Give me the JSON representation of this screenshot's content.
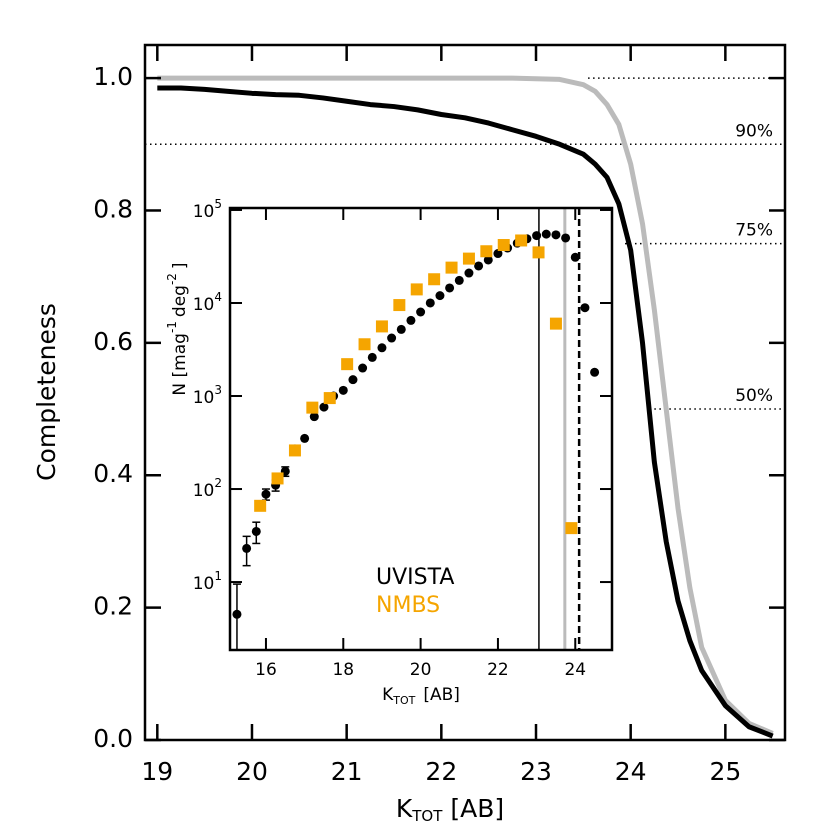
{
  "chart_data": [
    {
      "type": "line",
      "x_label": {
        "base": "K",
        "sub": "TOT",
        "rest": "[AB]"
      },
      "y_label": "Completeness",
      "xlim": [
        18.87,
        25.63
      ],
      "ylim": [
        0,
        1.05
      ],
      "xticks": [
        19,
        20,
        21,
        22,
        23,
        24,
        25
      ],
      "yticks": [
        {
          "value": 0,
          "label": "0.0"
        },
        0.2,
        0.4,
        0.6,
        0.8,
        {
          "value": 1,
          "label": "1.0"
        }
      ],
      "x": [
        19,
        19.25,
        19.5,
        19.75,
        20,
        20.25,
        20.5,
        20.75,
        21,
        21.25,
        21.5,
        21.75,
        22,
        22.25,
        22.5,
        22.75,
        23,
        23.25,
        23.5,
        23.625,
        23.75,
        23.875,
        24,
        24.125,
        24.25,
        24.375,
        24.5,
        24.625,
        24.75,
        25,
        25.25,
        25.5
      ],
      "series": [
        {
          "color": "#000000",
          "values": [
            0.985,
            0.985,
            0.983,
            0.98,
            0.977,
            0.975,
            0.974,
            0.97,
            0.965,
            0.96,
            0.957,
            0.952,
            0.945,
            0.94,
            0.932,
            0.922,
            0.912,
            0.9,
            0.885,
            0.87,
            0.85,
            0.81,
            0.74,
            0.6,
            0.42,
            0.3,
            0.21,
            0.15,
            0.105,
            0.052,
            0.02,
            0.006
          ]
        },
        {
          "color": "#bbbbbb",
          "values": [
            1,
            1,
            1,
            1,
            1,
            1,
            1,
            1,
            1,
            1,
            1,
            1,
            1,
            1,
            1,
            1,
            0.999,
            0.998,
            0.99,
            0.98,
            0.96,
            0.93,
            0.87,
            0.78,
            0.65,
            0.5,
            0.35,
            0.23,
            0.14,
            0.06,
            0.025,
            0.01
          ]
        }
      ],
      "reference_lines": [
        {
          "y": 1.0,
          "x_start": 23.55
        },
        {
          "y": 0.9,
          "x_start": 18.87,
          "label": "90%"
        },
        {
          "y": 0.75,
          "x_start": 23.94,
          "label": "75%"
        },
        {
          "y": 0.5,
          "x_start": 24.25,
          "label": "50%"
        }
      ]
    },
    {
      "type": "scatter",
      "x_label": {
        "base": "K",
        "sub": "TOT",
        "rest": "[AB]"
      },
      "y_label": [
        "N [mag",
        "-1",
        "deg",
        "-2",
        "]"
      ],
      "log_y": true,
      "xlim": [
        15.07,
        24.95
      ],
      "ylim": [
        1.86,
        105000
      ],
      "xticks": [
        16,
        18,
        20,
        22,
        24
      ],
      "yticks": [
        {
          "value": 10,
          "label": "10",
          "exp": "1"
        },
        {
          "value": 100,
          "label": "10",
          "exp": "2"
        },
        {
          "value": 1000,
          "label": "10",
          "exp": "3"
        },
        {
          "value": 10000,
          "label": "10",
          "exp": "4"
        },
        {
          "value": 100000,
          "label": "10",
          "exp": "5"
        }
      ],
      "legend": "lower center",
      "vlines": [
        {
          "x": 23.06,
          "color": "#000000",
          "dashed": false
        },
        {
          "x": 23.73,
          "color": "#bbbbbb",
          "dashed": false
        },
        {
          "x": 24.1,
          "color": "#000000",
          "dashed": true
        }
      ],
      "series": [
        {
          "name": "UVISTA",
          "color": "#000000",
          "marker": "circle",
          "x": [
            15.25,
            15.5,
            15.75,
            16,
            16.25,
            16.5,
            16.75,
            17,
            17.25,
            17.5,
            17.75,
            18,
            18.25,
            18.5,
            18.75,
            19,
            19.25,
            19.5,
            19.75,
            20,
            20.25,
            20.5,
            20.75,
            21,
            21.25,
            21.5,
            21.75,
            22,
            22.25,
            22.5,
            22.75,
            23,
            23.25,
            23.5,
            23.75,
            24,
            24.25,
            24.5
          ],
          "values": [
            4.5,
            23,
            35,
            88,
            110,
            155,
            270,
            350,
            600,
            760,
            1000,
            1150,
            1500,
            2000,
            2600,
            3300,
            4200,
            5200,
            6500,
            8000,
            10000,
            12000,
            14500,
            17500,
            21000,
            25000,
            29000,
            34000,
            39000,
            44000,
            49000,
            53000,
            55000,
            54000,
            50000,
            31000,
            8900,
            1800
          ],
          "errors": [
            5,
            8,
            9,
            12,
            15,
            18,
            null,
            null,
            null,
            null,
            null,
            null,
            null,
            null,
            null,
            null,
            null,
            null,
            null,
            null,
            null,
            null,
            null,
            null,
            null,
            null,
            null,
            null,
            null,
            null,
            null,
            null,
            null,
            null,
            null,
            null,
            null,
            null
          ]
        },
        {
          "name": "NMBS",
          "color": "#f5a500",
          "marker": "square",
          "x": [
            15.85,
            16.3,
            16.75,
            17.2,
            17.65,
            18.1,
            18.55,
            19.0,
            19.45,
            19.9,
            20.35,
            20.8,
            21.25,
            21.7,
            22.15,
            22.6,
            23.05,
            23.5,
            23.9
          ],
          "values": [
            66,
            130,
            260,
            750,
            950,
            2200,
            3600,
            5600,
            9500,
            14000,
            18000,
            24000,
            30000,
            36000,
            42000,
            47000,
            35000,
            6000,
            38
          ]
        }
      ]
    }
  ]
}
